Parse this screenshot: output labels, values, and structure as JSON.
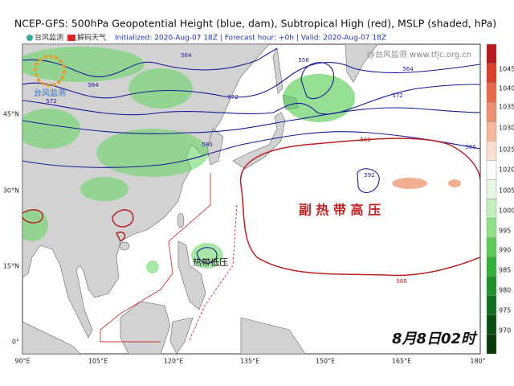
{
  "title": "NCEP-GFS: 500hPa Geopotential Height (blue, dam), Subtropical High (red), MSLP (shaded, hPa)",
  "subtitle": "Initialized: 2020-Aug-07 18Z  |  Forecast hour: +0h  |  Valid: 2020-Aug-07 18Z",
  "logos": [
    "台风监测",
    "解码天气"
  ],
  "badge": "台风监测",
  "watermark": "@台风监测 www.tfjc.org.cn",
  "longitude_labels": [
    "90°E",
    "105°E",
    "120°E",
    "135°E",
    "150°E",
    "165°E",
    "180°"
  ],
  "latitude_labels": [
    "45°N",
    "30°N",
    "15°N",
    "0°"
  ],
  "colorbar_labels": [
    "1045",
    "1040",
    "1035",
    "1030",
    "1025",
    "1020",
    "1005",
    "1000",
    "995",
    "990",
    "985",
    "980",
    "975",
    "970"
  ],
  "contour_labels": [
    "564",
    "564",
    "572",
    "572",
    "556",
    "564",
    "572",
    "580",
    "580",
    "588",
    "588",
    "592"
  ],
  "annotations": {
    "subtropical_high": "副 热 带 高 压",
    "tropical_depression": "热带低压",
    "time": "8月8日02时"
  }
}
